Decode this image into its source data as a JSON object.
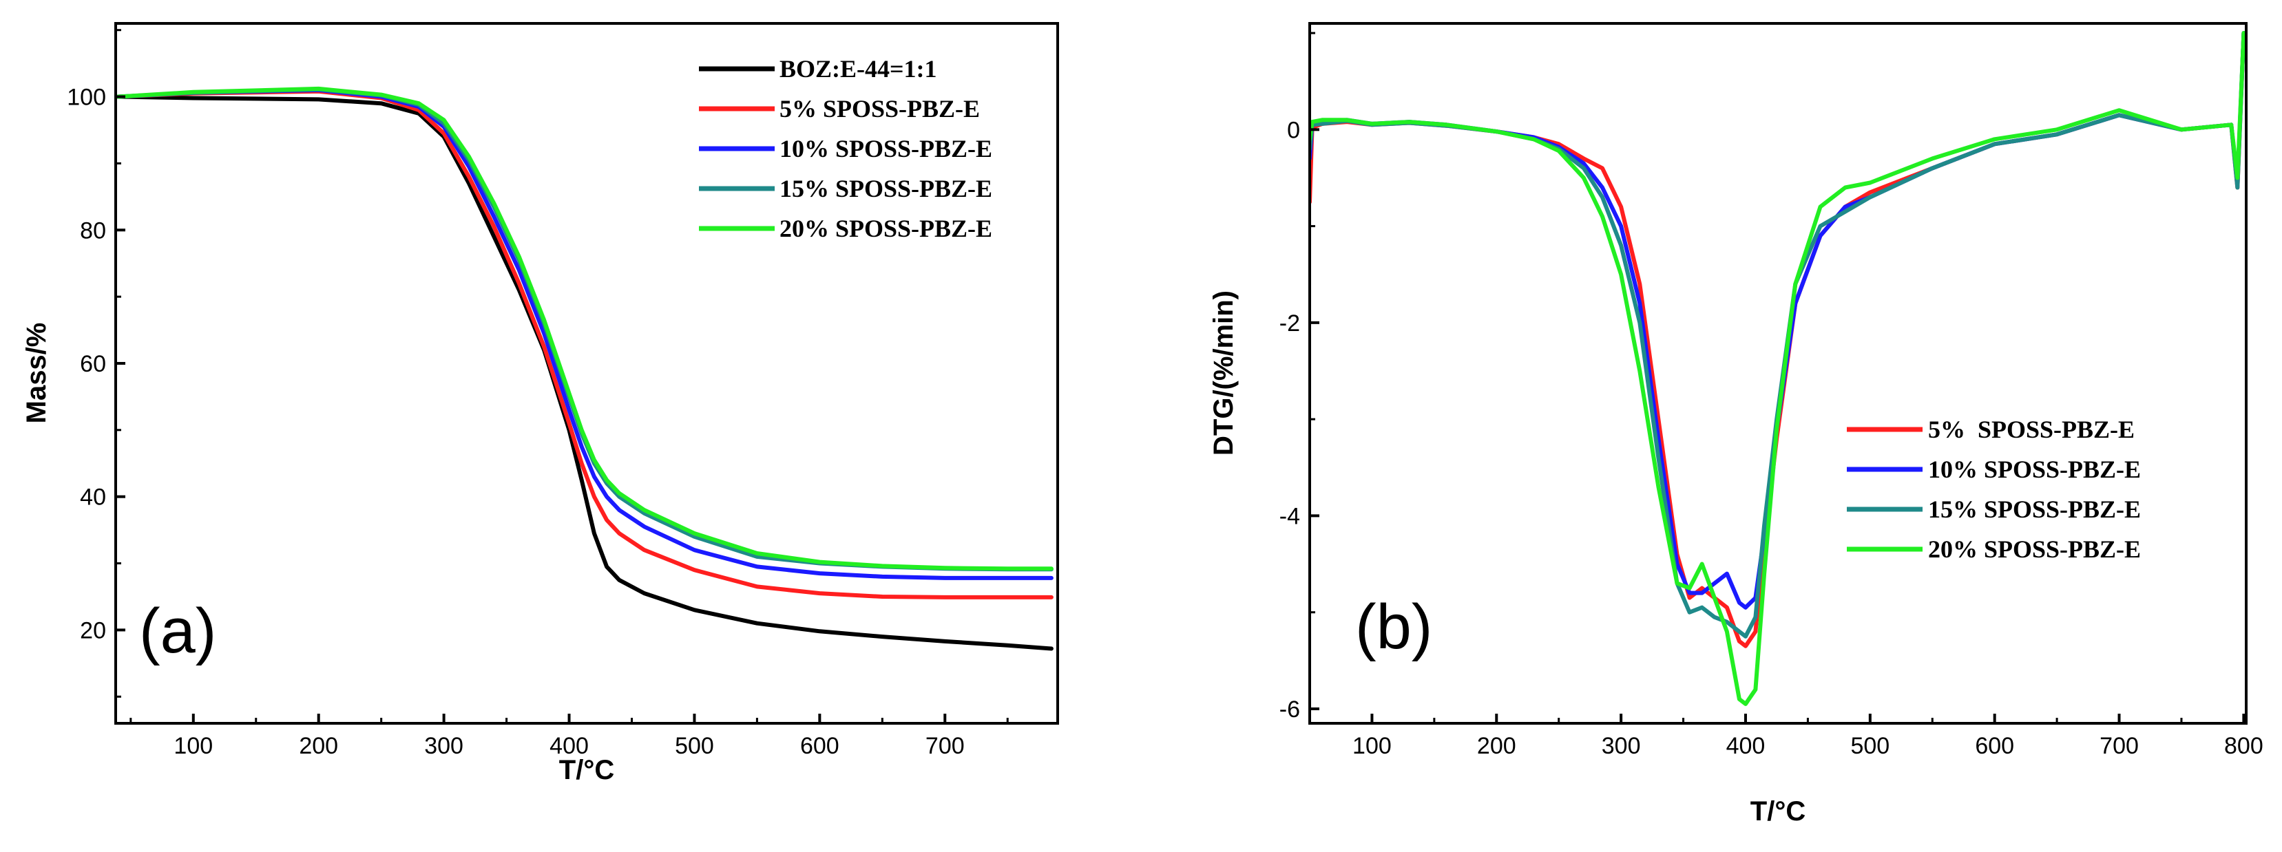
{
  "chart_data": [
    {
      "type": "line",
      "panel_label": "(a)",
      "xlabel": "T/°C",
      "ylabel": "Mass/%",
      "xlim": [
        38,
        790
      ],
      "ylim": [
        6,
        111
      ],
      "xticks": [
        100,
        200,
        300,
        400,
        500,
        600,
        700
      ],
      "yticks": [
        20,
        40,
        60,
        80,
        100
      ],
      "legend_position": "top-right",
      "series": [
        {
          "name": "BOZ:E-44=1:1",
          "color": "#000000",
          "x": [
            40,
            100,
            200,
            250,
            280,
            300,
            320,
            340,
            360,
            380,
            400,
            410,
            420,
            430,
            440,
            460,
            500,
            550,
            600,
            650,
            700,
            750,
            785
          ],
          "y": [
            100,
            99.8,
            99.6,
            99.0,
            97.5,
            94.0,
            87.0,
            79.0,
            71.0,
            62.0,
            50.0,
            42.5,
            34.5,
            29.5,
            27.5,
            25.5,
            23.0,
            21.0,
            19.8,
            19.0,
            18.3,
            17.7,
            17.2
          ]
        },
        {
          "name": "5% SPOSS-PBZ-E",
          "color": "#ff1f1f",
          "x": [
            40,
            100,
            200,
            250,
            280,
            300,
            320,
            340,
            360,
            380,
            400,
            410,
            420,
            430,
            440,
            460,
            500,
            550,
            600,
            650,
            700,
            750,
            785
          ],
          "y": [
            100,
            100.5,
            100.8,
            99.8,
            98.0,
            94.5,
            88.0,
            80.5,
            72.0,
            62.5,
            51.0,
            45.0,
            40.0,
            36.5,
            34.5,
            32.0,
            29.0,
            26.5,
            25.5,
            25.0,
            24.9,
            24.9,
            24.9
          ]
        },
        {
          "name": "10% SPOSS-PBZ-E",
          "color": "#1a1aff",
          "x": [
            40,
            100,
            200,
            250,
            280,
            300,
            320,
            340,
            360,
            380,
            400,
            410,
            420,
            430,
            440,
            460,
            500,
            550,
            600,
            650,
            700,
            750,
            785
          ],
          "y": [
            100,
            100.6,
            101.0,
            100.0,
            98.5,
            95.5,
            89.5,
            82.0,
            74.0,
            64.5,
            53.0,
            47.5,
            43.0,
            40.0,
            38.0,
            35.5,
            32.0,
            29.5,
            28.5,
            28.0,
            27.8,
            27.8,
            27.8
          ]
        },
        {
          "name": "15% SPOSS-PBZ-E",
          "color": "#1f8a8a",
          "x": [
            40,
            100,
            200,
            250,
            280,
            300,
            320,
            340,
            360,
            380,
            400,
            410,
            420,
            430,
            440,
            460,
            500,
            550,
            600,
            650,
            700,
            750,
            785
          ],
          "y": [
            100,
            100.6,
            101.1,
            100.2,
            98.8,
            96.0,
            90.5,
            83.5,
            75.5,
            66.0,
            55.0,
            49.5,
            45.0,
            42.0,
            40.0,
            37.5,
            34.0,
            31.0,
            30.0,
            29.5,
            29.2,
            29.1,
            29.1
          ]
        },
        {
          "name": "20% SPOSS-PBZ-E",
          "color": "#22ee22",
          "x": [
            40,
            100,
            200,
            250,
            280,
            300,
            320,
            340,
            360,
            380,
            400,
            410,
            420,
            430,
            440,
            460,
            500,
            550,
            600,
            650,
            700,
            750,
            785
          ],
          "y": [
            100,
            100.7,
            101.2,
            100.3,
            99.0,
            96.5,
            91.0,
            84.0,
            76.0,
            66.5,
            55.5,
            50.0,
            45.5,
            42.5,
            40.5,
            38.0,
            34.5,
            31.5,
            30.2,
            29.6,
            29.3,
            29.2,
            29.2
          ]
        }
      ]
    },
    {
      "type": "line",
      "panel_label": "(b)",
      "xlabel": "T/°C",
      "ylabel": "DTG/(%/min)",
      "xlim": [
        50,
        802
      ],
      "ylim": [
        -6.15,
        1.1
      ],
      "xticks": [
        100,
        200,
        300,
        400,
        500,
        600,
        700,
        800
      ],
      "yticks": [
        -6,
        -4,
        -2,
        0
      ],
      "legend_position": "bottom-right",
      "series": [
        {
          "name": "5%  SPOSS-PBZ-E",
          "color": "#ff1f1f",
          "x": [
            50,
            52,
            60,
            80,
            100,
            130,
            160,
            200,
            230,
            250,
            270,
            285,
            300,
            315,
            330,
            345,
            355,
            365,
            375,
            385,
            395,
            400,
            408,
            415,
            425,
            440,
            460,
            480,
            500,
            550,
            600,
            650,
            700,
            750,
            790,
            795,
            800
          ],
          "y": [
            -0.75,
            0.02,
            0.06,
            0.08,
            0.05,
            0.07,
            0.04,
            -0.02,
            -0.08,
            -0.15,
            -0.3,
            -0.4,
            -0.8,
            -1.6,
            -3.0,
            -4.4,
            -4.85,
            -4.75,
            -4.85,
            -4.95,
            -5.3,
            -5.35,
            -5.2,
            -4.3,
            -3.2,
            -1.8,
            -1.1,
            -0.8,
            -0.65,
            -0.4,
            -0.15,
            -0.05,
            0.15,
            0.0,
            0.05,
            -0.6,
            1.0
          ]
        },
        {
          "name": "10% SPOSS-PBZ-E",
          "color": "#1a1aff",
          "x": [
            50,
            52,
            60,
            80,
            100,
            130,
            160,
            200,
            230,
            250,
            270,
            285,
            300,
            315,
            330,
            345,
            355,
            365,
            375,
            385,
            395,
            400,
            408,
            415,
            425,
            440,
            460,
            480,
            500,
            550,
            600,
            650,
            700,
            750,
            790,
            795,
            800
          ],
          "y": [
            -0.3,
            0.05,
            0.07,
            0.1,
            0.06,
            0.08,
            0.05,
            -0.02,
            -0.08,
            -0.18,
            -0.35,
            -0.6,
            -1.0,
            -1.8,
            -3.2,
            -4.5,
            -4.8,
            -4.8,
            -4.7,
            -4.6,
            -4.9,
            -4.95,
            -4.85,
            -4.2,
            -3.1,
            -1.8,
            -1.1,
            -0.8,
            -0.7,
            -0.4,
            -0.15,
            -0.05,
            0.15,
            0.0,
            0.05,
            -0.55,
            1.0
          ]
        },
        {
          "name": "15% SPOSS-PBZ-E",
          "color": "#1f8a8a",
          "x": [
            50,
            52,
            60,
            80,
            100,
            130,
            160,
            200,
            230,
            250,
            270,
            285,
            300,
            315,
            330,
            345,
            355,
            365,
            375,
            385,
            395,
            400,
            408,
            415,
            425,
            440,
            460,
            480,
            500,
            550,
            600,
            650,
            700,
            750,
            790,
            795,
            800
          ],
          "y": [
            -0.2,
            0.05,
            0.06,
            0.09,
            0.05,
            0.07,
            0.04,
            -0.02,
            -0.1,
            -0.2,
            -0.4,
            -0.7,
            -1.2,
            -2.0,
            -3.4,
            -4.7,
            -5.0,
            -4.95,
            -5.05,
            -5.1,
            -5.2,
            -5.25,
            -5.05,
            -4.1,
            -3.0,
            -1.6,
            -1.0,
            -0.85,
            -0.7,
            -0.4,
            -0.15,
            -0.05,
            0.15,
            0.0,
            0.05,
            -0.6,
            1.0
          ]
        },
        {
          "name": "20% SPOSS-PBZ-E",
          "color": "#22ee22",
          "x": [
            50,
            52,
            60,
            80,
            100,
            130,
            160,
            200,
            230,
            250,
            270,
            285,
            300,
            315,
            330,
            345,
            355,
            365,
            375,
            385,
            395,
            400,
            408,
            415,
            425,
            440,
            460,
            480,
            500,
            550,
            600,
            650,
            700,
            750,
            790,
            795,
            800
          ],
          "y": [
            -0.1,
            0.08,
            0.1,
            0.1,
            0.06,
            0.08,
            0.05,
            -0.02,
            -0.1,
            -0.22,
            -0.5,
            -0.9,
            -1.5,
            -2.5,
            -3.7,
            -4.7,
            -4.75,
            -4.5,
            -4.85,
            -5.2,
            -5.9,
            -5.95,
            -5.8,
            -4.6,
            -3.1,
            -1.6,
            -0.8,
            -0.6,
            -0.55,
            -0.3,
            -0.1,
            0.0,
            0.2,
            0.0,
            0.05,
            -0.5,
            1.0
          ]
        }
      ]
    }
  ]
}
